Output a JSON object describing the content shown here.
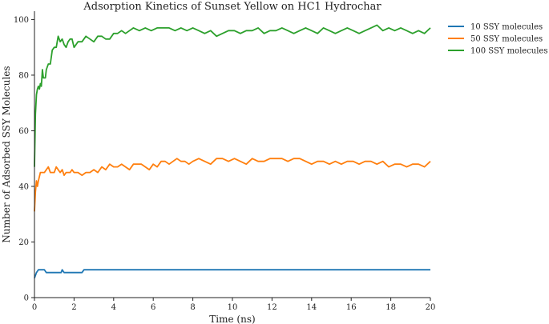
{
  "chart_data": {
    "type": "line",
    "title": "Adsorption Kinetics of Sunset Yellow on HC1 Hydrochar",
    "xlabel": "Time (ns)",
    "ylabel": "Number of Adsorbed SSY Molecules",
    "xlim": [
      0,
      20
    ],
    "ylim": [
      0,
      103
    ],
    "xticks": [
      0,
      2,
      4,
      6,
      8,
      10,
      12,
      14,
      16,
      18,
      20
    ],
    "yticks": [
      0,
      20,
      40,
      60,
      80,
      100
    ],
    "grid": false,
    "legend_position": "outside-top-right",
    "series": [
      {
        "name": "10 SSY molecules",
        "color": "#1f77b4",
        "x": [
          0,
          0.1,
          0.2,
          0.3,
          0.4,
          0.5,
          0.6,
          0.8,
          1.0,
          1.2,
          1.35,
          1.4,
          1.5,
          1.8,
          2.0,
          2.3,
          2.4,
          2.5,
          3.0,
          4.0,
          6.0,
          8.0,
          10.0,
          12.0,
          14.0,
          16.0,
          18.0,
          20.0
        ],
        "values": [
          7,
          9,
          10,
          10,
          10,
          10,
          9,
          9,
          9,
          9,
          9,
          10,
          9,
          9,
          9,
          9,
          9,
          10,
          10,
          10,
          10,
          10,
          10,
          10,
          10,
          10,
          10,
          10
        ]
      },
      {
        "name": "50 SSY molecules",
        "color": "#ff7f0e",
        "x": [
          0,
          0.05,
          0.1,
          0.15,
          0.2,
          0.3,
          0.4,
          0.5,
          0.6,
          0.7,
          0.8,
          0.9,
          1.0,
          1.1,
          1.2,
          1.3,
          1.4,
          1.5,
          1.6,
          1.7,
          1.8,
          1.9,
          2.0,
          2.2,
          2.4,
          2.6,
          2.8,
          3.0,
          3.2,
          3.4,
          3.6,
          3.8,
          4.0,
          4.2,
          4.4,
          4.6,
          4.8,
          5.0,
          5.2,
          5.4,
          5.6,
          5.8,
          6.0,
          6.2,
          6.4,
          6.6,
          6.8,
          7.0,
          7.2,
          7.4,
          7.6,
          7.8,
          8.0,
          8.3,
          8.6,
          8.9,
          9.2,
          9.5,
          9.8,
          10.1,
          10.4,
          10.7,
          11.0,
          11.3,
          11.6,
          11.9,
          12.2,
          12.5,
          12.8,
          13.1,
          13.4,
          13.7,
          14.0,
          14.3,
          14.6,
          14.9,
          15.2,
          15.5,
          15.8,
          16.1,
          16.4,
          16.7,
          17.0,
          17.3,
          17.6,
          17.9,
          18.2,
          18.5,
          18.8,
          19.1,
          19.4,
          19.7,
          20.0
        ],
        "values": [
          31,
          38,
          42,
          40,
          42,
          45,
          45,
          45,
          46,
          47,
          45,
          45,
          45,
          47,
          46,
          45,
          46,
          44,
          45,
          45,
          45,
          46,
          45,
          45,
          44,
          45,
          45,
          46,
          45,
          47,
          46,
          48,
          47,
          47,
          48,
          47,
          46,
          48,
          48,
          48,
          47,
          46,
          48,
          47,
          49,
          49,
          48,
          49,
          50,
          49,
          49,
          48,
          49,
          50,
          49,
          48,
          50,
          50,
          49,
          50,
          49,
          48,
          50,
          49,
          49,
          50,
          50,
          50,
          49,
          50,
          50,
          49,
          48,
          49,
          49,
          48,
          49,
          48,
          49,
          49,
          48,
          49,
          49,
          48,
          49,
          47,
          48,
          48,
          47,
          48,
          48,
          47,
          49
        ]
      },
      {
        "name": "100 SSY molecules",
        "color": "#2ca02c",
        "x": [
          0,
          0.05,
          0.1,
          0.15,
          0.2,
          0.25,
          0.3,
          0.35,
          0.4,
          0.45,
          0.5,
          0.55,
          0.6,
          0.7,
          0.8,
          0.9,
          1.0,
          1.1,
          1.2,
          1.3,
          1.4,
          1.5,
          1.6,
          1.7,
          1.8,
          1.9,
          2.0,
          2.1,
          2.2,
          2.4,
          2.6,
          2.8,
          3.0,
          3.2,
          3.4,
          3.6,
          3.8,
          4.0,
          4.2,
          4.4,
          4.6,
          4.8,
          5.0,
          5.3,
          5.6,
          5.9,
          6.2,
          6.5,
          6.8,
          7.1,
          7.4,
          7.7,
          8.0,
          8.3,
          8.6,
          8.9,
          9.2,
          9.5,
          9.8,
          10.1,
          10.4,
          10.7,
          11.0,
          11.3,
          11.6,
          11.9,
          12.2,
          12.5,
          12.8,
          13.1,
          13.4,
          13.7,
          14.0,
          14.3,
          14.6,
          14.9,
          15.2,
          15.5,
          15.8,
          16.1,
          16.4,
          16.7,
          17.0,
          17.3,
          17.6,
          17.9,
          18.2,
          18.5,
          18.8,
          19.1,
          19.4,
          19.7,
          20.0
        ],
        "values": [
          47,
          66,
          73,
          75,
          76,
          75,
          77,
          76,
          82,
          79,
          79,
          79,
          82,
          84,
          84,
          89,
          90,
          90,
          94,
          92,
          93,
          91,
          90,
          92,
          93,
          93,
          90,
          91,
          92,
          92,
          94,
          93,
          92,
          94,
          94,
          93,
          93,
          95,
          95,
          96,
          95,
          96,
          97,
          96,
          97,
          96,
          97,
          97,
          97,
          96,
          97,
          96,
          97,
          96,
          95,
          96,
          94,
          95,
          96,
          96,
          95,
          96,
          96,
          97,
          95,
          96,
          96,
          97,
          96,
          95,
          96,
          97,
          96,
          95,
          97,
          96,
          95,
          96,
          97,
          96,
          95,
          96,
          97,
          98,
          96,
          97,
          96,
          97,
          96,
          95,
          96,
          95,
          97
        ]
      }
    ]
  }
}
